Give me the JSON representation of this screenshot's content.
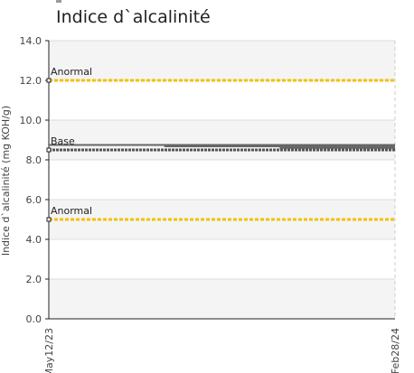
{
  "chart_data": {
    "type": "line",
    "title": "Indice d`alcalinité",
    "ylabel": "Indice d`alcalinité (mg KOH/g)",
    "xlabel": "",
    "ylim": [
      0,
      14
    ],
    "yticks": [
      "0.0",
      "2.0",
      "4.0",
      "6.0",
      "8.0",
      "10.0",
      "12.0",
      "14.0"
    ],
    "x_ticks": [
      "May12/23",
      "Feb28/24"
    ],
    "grid": true,
    "series": [
      {
        "name": "Base",
        "color": "#555555",
        "points": [
          {
            "x": "May12/23",
            "y": 8.5
          },
          {
            "x": "Feb28/24",
            "y": 8.5
          }
        ],
        "variants": [
          8.75,
          8.68,
          8.6
        ]
      },
      {
        "name": "Anormal",
        "color": "#f2c100",
        "points": [
          {
            "x": "May12/23",
            "y": 12.0
          },
          {
            "x": "Feb28/24",
            "y": 12.0
          }
        ]
      },
      {
        "name": "Anormal",
        "color": "#f2c100",
        "points": [
          {
            "x": "May12/23",
            "y": 5.0
          },
          {
            "x": "Feb28/24",
            "y": 5.0
          }
        ]
      }
    ]
  }
}
